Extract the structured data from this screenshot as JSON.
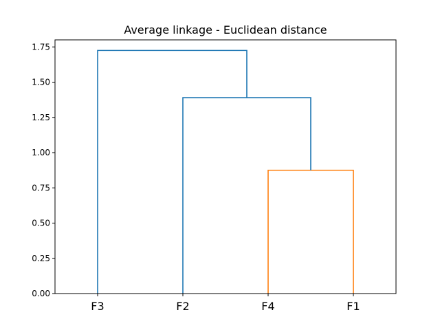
{
  "chart_data": {
    "type": "dendrogram",
    "title": "Average linkage - Euclidean distance",
    "xlabel": "",
    "ylabel": "",
    "leaves": [
      "F3",
      "F2",
      "F4",
      "F1"
    ],
    "ylim": [
      0,
      1.8
    ],
    "yticks": [
      "0.00",
      "0.25",
      "0.50",
      "0.75",
      "1.00",
      "1.25",
      "1.50",
      "1.75"
    ],
    "ytick_values": [
      0,
      0.25,
      0.5,
      0.75,
      1.0,
      1.25,
      1.5,
      1.75
    ],
    "grid": false,
    "colors": {
      "cluster": "#ff7f0e",
      "above_threshold": "#1f77b4"
    },
    "merges": [
      {
        "left": "F4",
        "right": "F1",
        "height": 0.875,
        "color": "#ff7f0e"
      },
      {
        "left": "F2",
        "right": "F4+F1",
        "height": 1.39,
        "color": "#1f77b4"
      },
      {
        "left": "F3",
        "right": "F2+F4+F1",
        "height": 1.725,
        "color": "#1f77b4"
      }
    ]
  }
}
